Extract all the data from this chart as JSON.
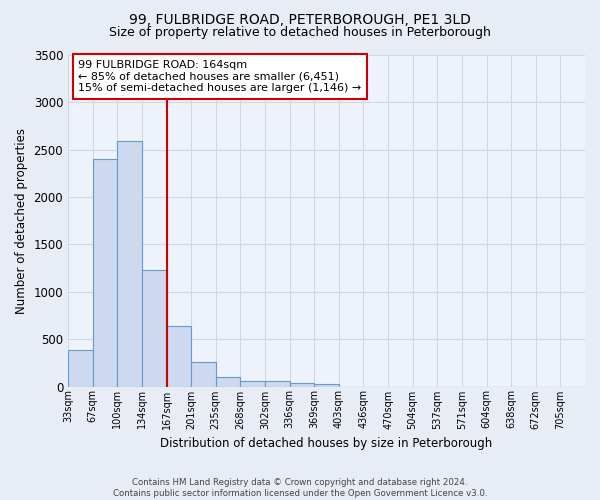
{
  "title": "99, FULBRIDGE ROAD, PETERBOROUGH, PE1 3LD",
  "subtitle": "Size of property relative to detached houses in Peterborough",
  "xlabel": "Distribution of detached houses by size in Peterborough",
  "ylabel": "Number of detached properties",
  "footer_line1": "Contains HM Land Registry data © Crown copyright and database right 2024.",
  "footer_line2": "Contains public sector information licensed under the Open Government Licence v3.0.",
  "annotation_title": "99 FULBRIDGE ROAD: 164sqm",
  "annotation_line1": "← 85% of detached houses are smaller (6,451)",
  "annotation_line2": "15% of semi-detached houses are larger (1,146) →",
  "bar_color": "#ccd9ee",
  "bar_edge_color": "#6699cc",
  "vline_color": "#cc0000",
  "vline_x": 4,
  "tick_labels": [
    "33sqm",
    "67sqm",
    "100sqm",
    "134sqm",
    "167sqm",
    "201sqm",
    "235sqm",
    "268sqm",
    "302sqm",
    "336sqm",
    "369sqm",
    "403sqm",
    "436sqm",
    "470sqm",
    "504sqm",
    "537sqm",
    "571sqm",
    "604sqm",
    "638sqm",
    "672sqm",
    "705sqm"
  ],
  "values": [
    390,
    2400,
    2590,
    1230,
    640,
    260,
    100,
    60,
    55,
    40,
    30,
    0,
    0,
    0,
    0,
    0,
    0,
    0,
    0,
    0,
    0
  ],
  "ylim": [
    0,
    3500
  ],
  "yticks": [
    0,
    500,
    1000,
    1500,
    2000,
    2500,
    3000,
    3500
  ],
  "background_color": "#e8edf5",
  "plot_bg_color": "#eef2fb",
  "grid_color": "#d0d8e8",
  "title_fontsize": 10,
  "subtitle_fontsize": 9,
  "annotation_box_color": "#ffffff",
  "annotation_box_edge": "#cc0000",
  "annotation_fontsize": 8
}
